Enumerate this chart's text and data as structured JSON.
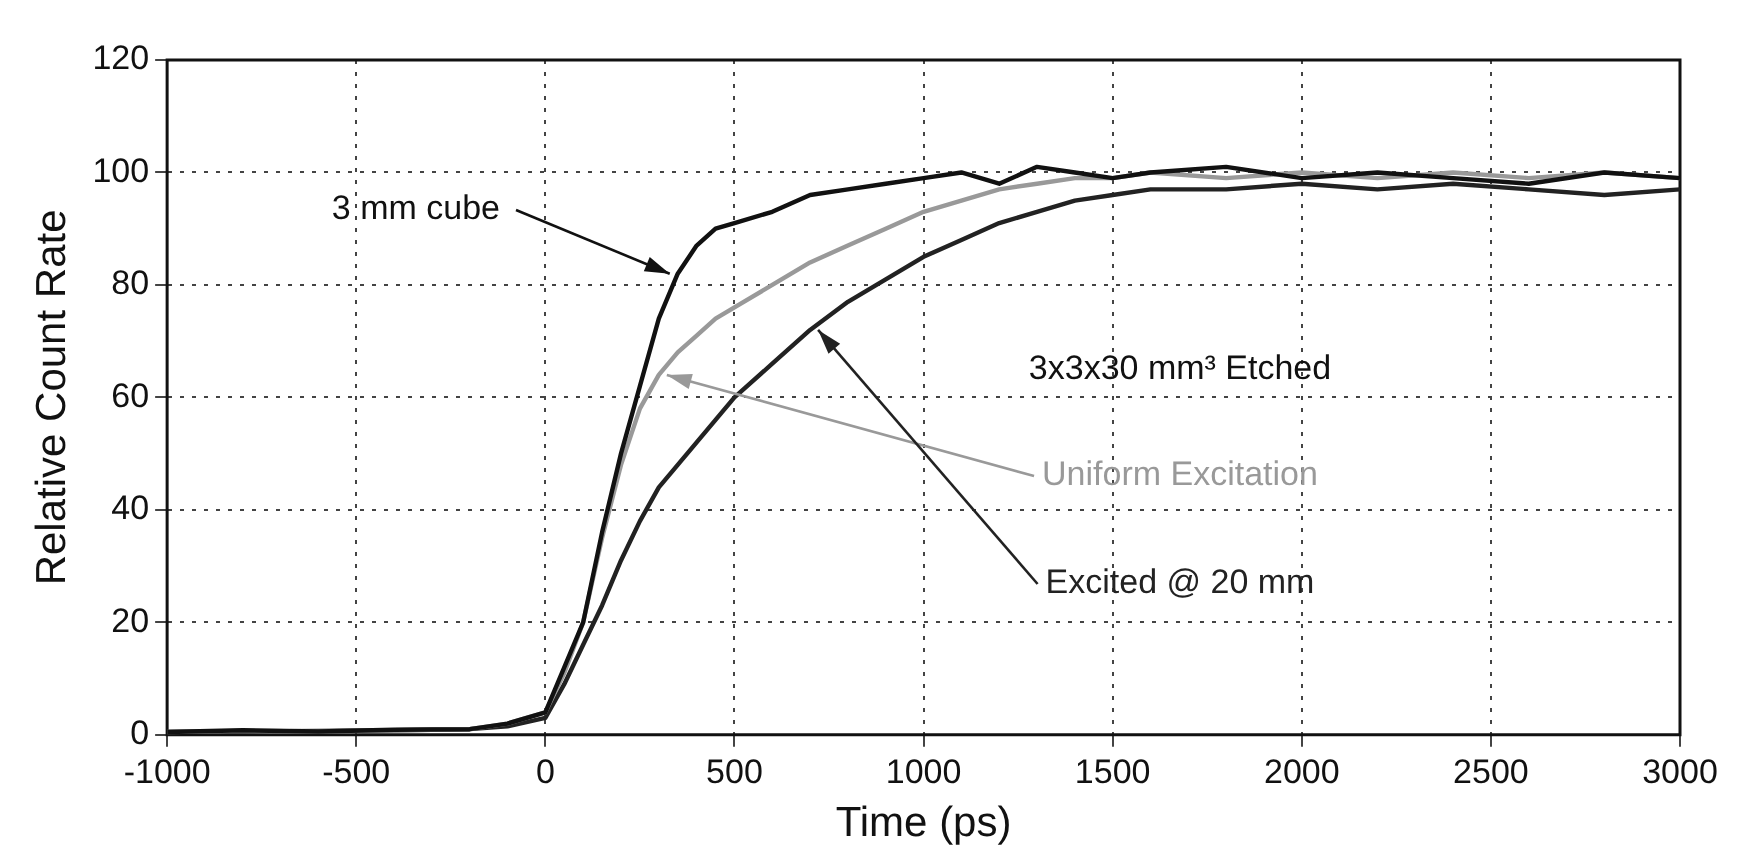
{
  "chart_data": {
    "type": "line",
    "xlabel": "Time (ps)",
    "ylabel": "Relative Count Rate",
    "annotations": [
      "3x3x30 mm³ Etched"
    ],
    "x": [
      -1000,
      -800,
      -600,
      -400,
      -200,
      -100,
      0,
      50,
      100,
      150,
      200,
      250,
      300,
      350,
      400,
      450,
      500,
      600,
      700,
      800,
      900,
      1000,
      1100,
      1200,
      1300,
      1400,
      1500,
      1600,
      1800,
      2000,
      2200,
      2400,
      2600,
      2800,
      3000
    ],
    "series": [
      {
        "name": "3 mm cube",
        "color": "#111111",
        "values": [
          0.5,
          0.8,
          0.6,
          0.9,
          1,
          2,
          4,
          12,
          20,
          36,
          50,
          62,
          74,
          82,
          87,
          90,
          91,
          93,
          96,
          97,
          98,
          99,
          100,
          98,
          101,
          100,
          99,
          100,
          101,
          99,
          100,
          99,
          98,
          100,
          99
        ]
      },
      {
        "name": "Uniform Excitation",
        "color": "#999999",
        "values": [
          0.5,
          0.7,
          0.6,
          0.8,
          1,
          2,
          4,
          11,
          20,
          35,
          48,
          58,
          64,
          68,
          71,
          74,
          76,
          80,
          84,
          87,
          90,
          93,
          95,
          97,
          98,
          99,
          99,
          100,
          99,
          100,
          99,
          100,
          99,
          100,
          99
        ]
      },
      {
        "name": "Excited @ 20 mm",
        "color": "#222222",
        "values": [
          0.5,
          0.6,
          0.7,
          0.8,
          1,
          1.5,
          3,
          9,
          16,
          23,
          31,
          38,
          44,
          48,
          52,
          56,
          60,
          66,
          72,
          77,
          81,
          85,
          88,
          91,
          93,
          95,
          96,
          97,
          97,
          98,
          97,
          98,
          97,
          96,
          97
        ]
      }
    ],
    "xlim": [
      -1000,
      3000
    ],
    "ylim": [
      0,
      120
    ],
    "xticks": [
      -1000,
      -500,
      0,
      500,
      1000,
      1500,
      2000,
      2500,
      3000
    ],
    "yticks": [
      0,
      20,
      40,
      60,
      80,
      100,
      120
    ],
    "grid": true,
    "legend": false,
    "marker": "none",
    "line_style": "solid"
  }
}
